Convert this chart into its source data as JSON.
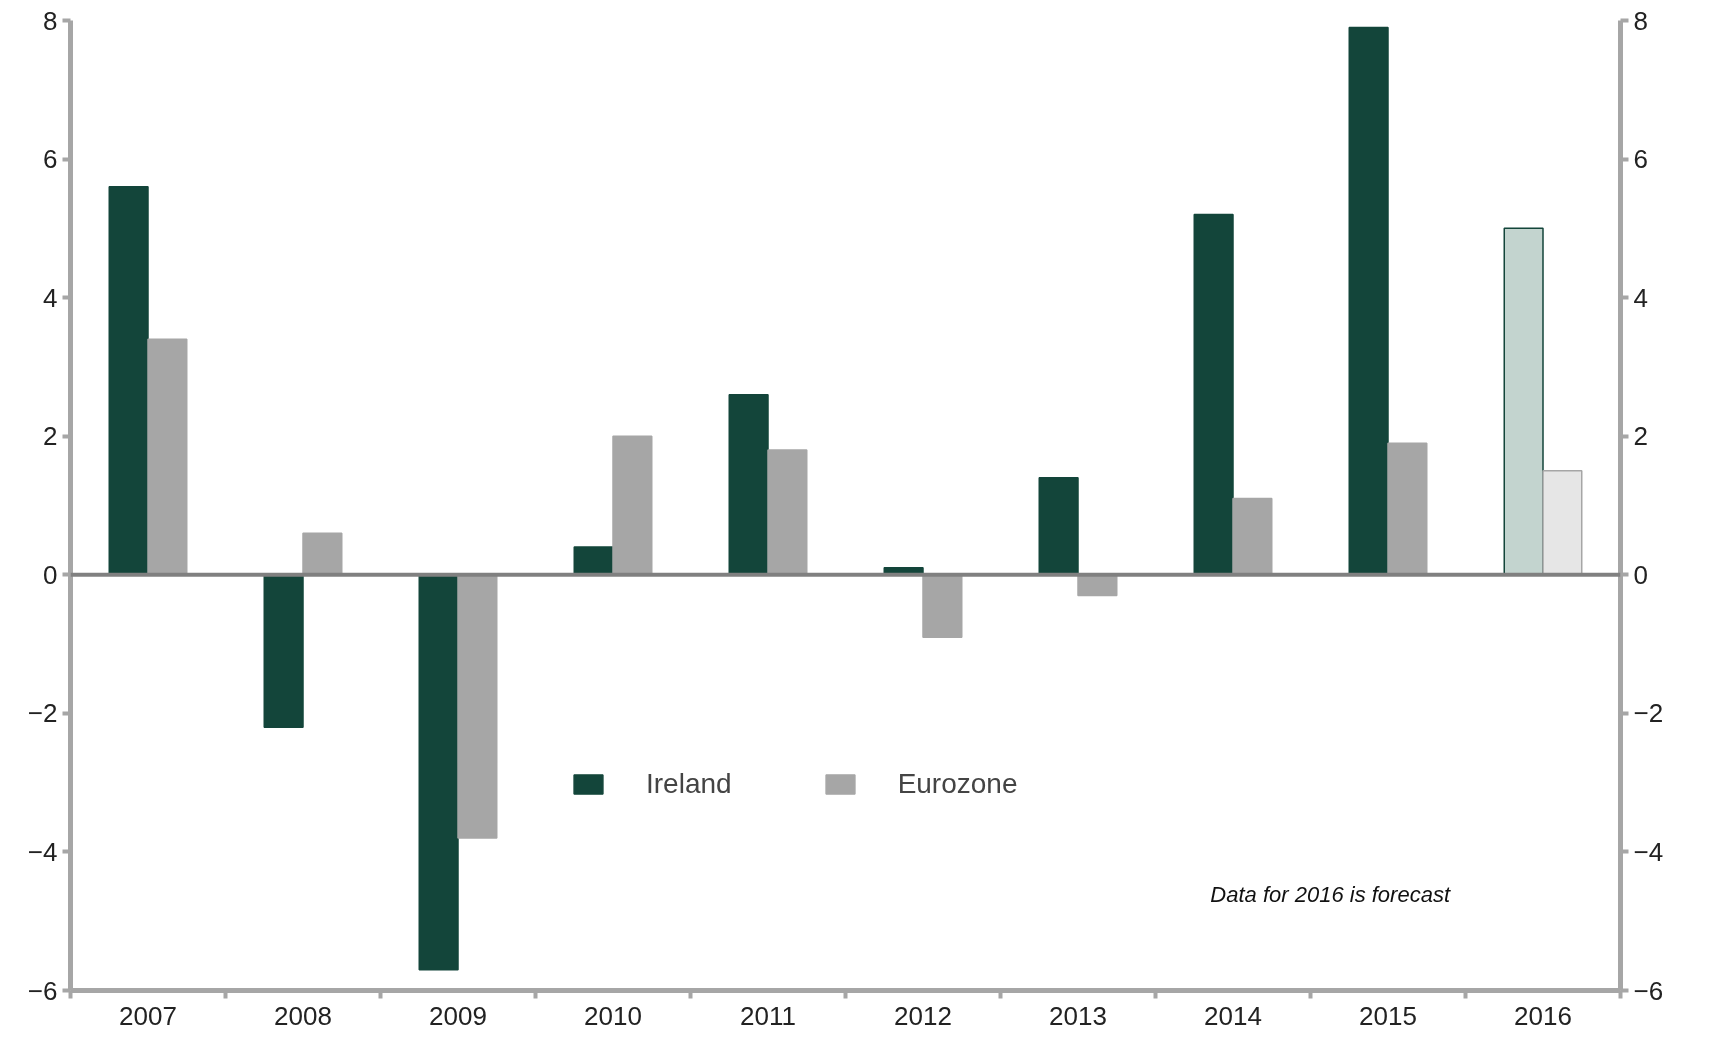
{
  "chart_data": {
    "type": "bar",
    "categories": [
      "2007",
      "2008",
      "2009",
      "2010",
      "2011",
      "2012",
      "2013",
      "2014",
      "2015",
      "2016"
    ],
    "series": [
      {
        "name": "Ireland",
        "color": "#13453a",
        "colors": [
          "#13453a",
          "#13453a",
          "#13453a",
          "#13453a",
          "#13453a",
          "#13453a",
          "#13453a",
          "#13453a",
          "#13453a",
          "#c3d4cf"
        ],
        "values": [
          5.6,
          -2.2,
          -5.7,
          0.4,
          2.6,
          0.1,
          1.4,
          5.2,
          7.9,
          5.0
        ]
      },
      {
        "name": "Eurozone",
        "color": "#a6a6a6",
        "colors": [
          "#a6a6a6",
          "#a6a6a6",
          "#a6a6a6",
          "#a6a6a6",
          "#a6a6a6",
          "#a6a6a6",
          "#a6a6a6",
          "#a6a6a6",
          "#a6a6a6",
          "#e6e6e6"
        ],
        "values": [
          3.4,
          0.6,
          -3.8,
          2.0,
          1.8,
          -0.9,
          -0.3,
          1.1,
          1.9,
          1.5
        ]
      }
    ],
    "ylim": [
      -6,
      8
    ],
    "yticks": [
      -6,
      -4,
      -2,
      0,
      2,
      4,
      6,
      8
    ],
    "y2lim": [
      -6,
      8
    ],
    "y2ticks": [
      -6,
      -4,
      -2,
      0,
      2,
      4,
      6,
      8
    ],
    "ref_lines": [
      {
        "axis": "y",
        "value": 0,
        "color": "#808080"
      }
    ],
    "annotations": [
      "Data for 2016 is forecast"
    ],
    "legend": "bottom",
    "grid": false
  }
}
